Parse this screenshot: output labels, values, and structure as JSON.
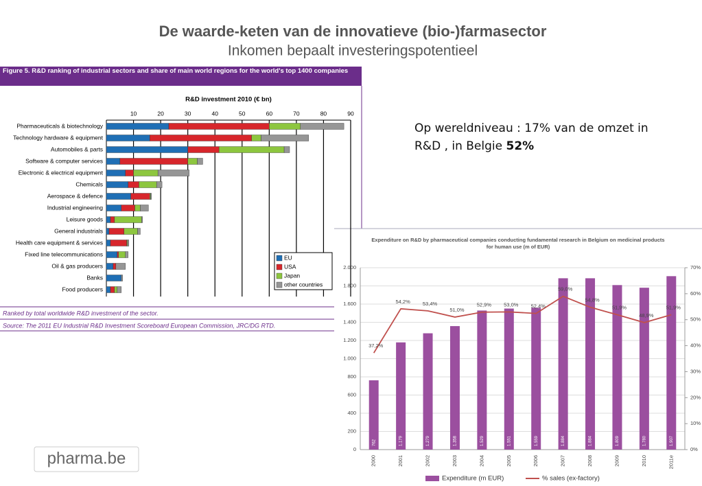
{
  "slide": {
    "title": "De waarde-keten van de innovatieve (bio-)farmasector",
    "subtitle": "Inkomen bepaalt investeringspotentieel",
    "text": "Op wereldniveau : 17% van de omzet in R&D , in Belgie",
    "highlight": "52%",
    "logo": "pharma.be"
  },
  "figure": {
    "caption": "Figure 5.  R&D ranking of industrial sectors and share of main world regions for the world's top 1400 companies",
    "note": "Ranked by total worldwide R&D investment of the sector.",
    "source": "Source: The 2011 EU Industrial R&D Investment Scoreboard  European Commission, JRC/DG RTD."
  },
  "chart_data": [
    {
      "type": "hbar_stacked",
      "title": "R&D investment 2010 (€ bn)",
      "categories": [
        "Pharmaceuticals & biotechnology",
        "Technology hardware & equipment",
        "Automobiles & parts",
        "Software & computer services",
        "Electronic & electrical equipment",
        "Chemicals",
        "Aerospace & defence",
        "Industrial engineering",
        "Leisure goods",
        "General industrials",
        "Health care equipment & services",
        "Fixed line telecommunications",
        "Oil & gas producers",
        "Banks",
        "Food producers"
      ],
      "series": [
        {
          "name": "EU",
          "color": "#1f6fb5",
          "values": [
            23,
            16,
            30,
            5,
            7,
            8,
            9,
            5.5,
            1.5,
            1,
            1.5,
            4,
            2.5,
            5.5,
            1.5
          ]
        },
        {
          "name": "USA",
          "color": "#d7262b",
          "values": [
            37,
            37.5,
            11.5,
            25,
            3,
            4,
            7,
            5,
            1.5,
            5.5,
            6,
            0.5,
            1,
            0,
            1.5
          ]
        },
        {
          "name": "Japan",
          "color": "#8dc63f",
          "values": [
            11.5,
            3.5,
            24,
            3.5,
            9,
            6.5,
            0.3,
            2,
            10,
            5,
            0.3,
            2.5,
            0,
            0,
            1
          ]
        },
        {
          "name": "other countries",
          "color": "#969696",
          "values": [
            16,
            17.5,
            2,
            2,
            11.5,
            2,
            0.3,
            3,
            0.3,
            1,
            0.5,
            1,
            3.5,
            0.5,
            1.5
          ]
        }
      ],
      "xlim": [
        0,
        90
      ],
      "xticks": [
        10,
        20,
        30,
        40,
        50,
        60,
        70,
        80,
        90
      ],
      "grid": true,
      "legend": "lower right"
    },
    {
      "type": "bar_line",
      "title": "Expenditure on R&D by pharmaceutical companies conducting fundamental research in Belgium on medicinal products for human use (m of EUR)",
      "categories": [
        "2000",
        "2001",
        "2002",
        "2003",
        "2004",
        "2005",
        "2006",
        "2007",
        "2008",
        "2009",
        "2010",
        "2011e"
      ],
      "series": [
        {
          "name": "Expenditure (m EUR)",
          "type": "bar",
          "color": "#9b4f9f",
          "values": [
            762,
            1179,
            1279,
            1358,
            1529,
            1551,
            1559,
            1884,
            1884,
            1809,
            1780,
            1907
          ],
          "value_labels": [
            "762",
            "1.179",
            "1.279",
            "1.358",
            "1.529",
            "1.551",
            "1.559",
            "1.884",
            "1.884",
            "1.809",
            "1.780",
            "1.907"
          ]
        },
        {
          "name": "% sales (ex-factory)",
          "type": "line",
          "axis": "y2",
          "color": "#c0504d",
          "values": [
            37.2,
            54.2,
            53.4,
            51.0,
            52.9,
            53.0,
            52.4,
            59.0,
            54.8,
            51.9,
            48.9,
            51.9
          ],
          "value_labels": [
            "37,2%",
            "54,2%",
            "53,4%",
            "51,0%",
            "52,9%",
            "53,0%",
            "52,4%",
            "59,0%",
            "54,8%",
            "51,9%",
            "48,9%",
            "51,9%"
          ]
        }
      ],
      "ylim": [
        0,
        2000
      ],
      "yticks": [
        0,
        200,
        400,
        600,
        800,
        {
          "value": 1000,
          "label": "1.000"
        },
        {
          "value": 1200,
          "label": "1.200"
        },
        {
          "value": 1400,
          "label": "1.400"
        },
        {
          "value": 1600,
          "label": "1.600"
        },
        {
          "value": 1800,
          "label": "1.800"
        },
        {
          "value": 2000,
          "label": "2.000"
        }
      ],
      "y2lim": [
        0,
        70
      ],
      "y2ticks": [
        {
          "value": 0,
          "label": "0%"
        },
        {
          "value": 10,
          "label": "10%"
        },
        {
          "value": 20,
          "label": "20%"
        },
        {
          "value": 30,
          "label": "30%"
        },
        {
          "value": 40,
          "label": "40%"
        },
        {
          "value": 50,
          "label": "50%"
        },
        {
          "value": 60,
          "label": "60%"
        },
        {
          "value": 70,
          "label": "70%"
        }
      ],
      "grid": true,
      "legend": "bottom"
    }
  ]
}
